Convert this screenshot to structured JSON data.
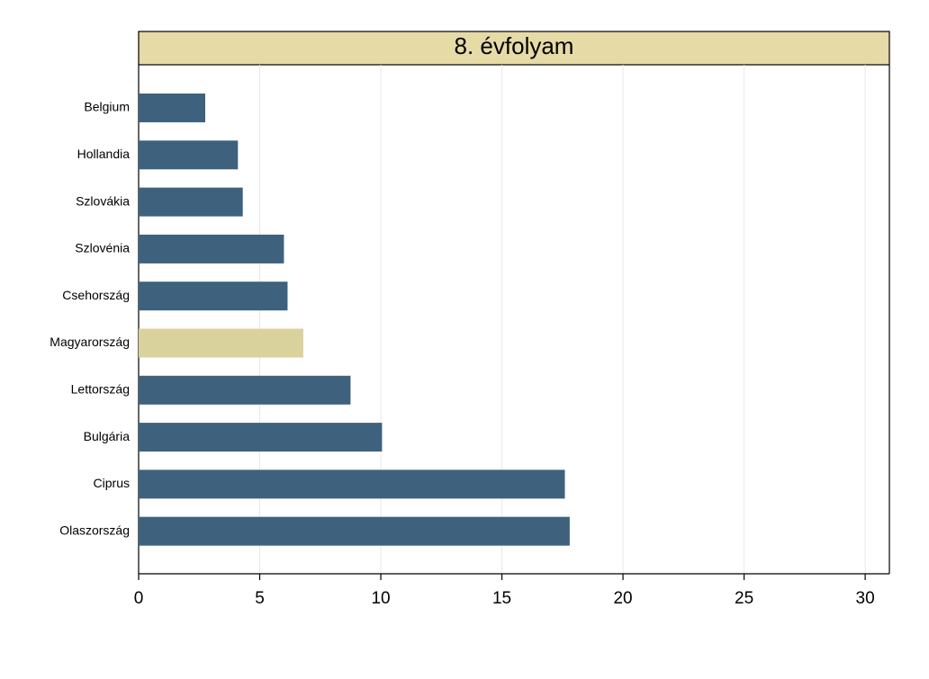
{
  "chart_data": {
    "type": "bar",
    "orientation": "horizontal",
    "title": "8. évfolyam",
    "categories": [
      "Belgium",
      "Hollandia",
      "Szlovákia",
      "Szlovénia",
      "Csehország",
      "Magyarország",
      "Lettország",
      "Bulgária",
      "Ciprus",
      "Olaszország"
    ],
    "values": [
      2.75,
      4.1,
      4.3,
      6.0,
      6.15,
      6.8,
      8.75,
      10.05,
      17.6,
      17.8
    ],
    "colors": [
      "#3e627d",
      "#3e627d",
      "#3e627d",
      "#3e627d",
      "#3e627d",
      "#d9d29d",
      "#3e627d",
      "#3e627d",
      "#3e627d",
      "#3e627d"
    ],
    "xlim": [
      0,
      31
    ],
    "xticks": [
      0,
      5,
      10,
      15,
      20,
      25,
      30
    ],
    "grid": true
  }
}
